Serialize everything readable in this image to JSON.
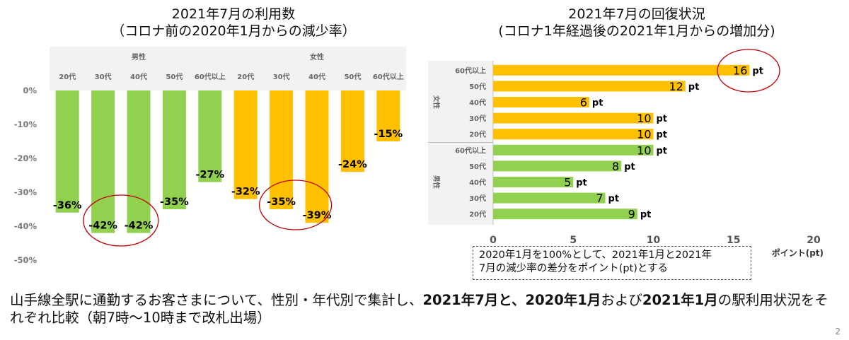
{
  "chart_data": [
    {
      "type": "bar",
      "title": "2021年7月の利用数",
      "subtitle": "（コロナ前の2020年1月からの減少率）",
      "groups": [
        {
          "name": "男性",
          "color": "#92d050",
          "categories": [
            "20代",
            "30代",
            "40代",
            "50代",
            "60代以上"
          ],
          "values": [
            -36,
            -42,
            -42,
            -35,
            -27
          ],
          "labels": [
            "-36%",
            "-42%",
            "-42%",
            "-35%",
            "-27%"
          ]
        },
        {
          "name": "女性",
          "color": "#ffc000",
          "categories": [
            "20代",
            "30代",
            "40代",
            "50代",
            "60代以上"
          ],
          "values": [
            -32,
            -35,
            -39,
            -24,
            -15
          ],
          "labels": [
            "-32%",
            "-35%",
            "-39%",
            "-24%",
            "-15%"
          ]
        }
      ],
      "ylim": [
        -50,
        0
      ],
      "yticks": [
        "0%",
        "-10%",
        "-20%",
        "-30%",
        "-40%",
        "-50%"
      ],
      "grid": false
    },
    {
      "type": "bar",
      "orientation": "horizontal",
      "title": "2021年7月の回復状況",
      "subtitle": "(コロナ1年経過後の2021年1月からの増加分)",
      "groups": [
        {
          "name": "女性",
          "color": "#ffc000",
          "categories": [
            "60代以上",
            "50代",
            "40代",
            "30代",
            "20代"
          ],
          "values": [
            16,
            12,
            6,
            10,
            10
          ]
        },
        {
          "name": "男性",
          "color": "#92d050",
          "categories": [
            "60代以上",
            "50代",
            "40代",
            "30代",
            "20代"
          ],
          "values": [
            10,
            8,
            5,
            7,
            9
          ]
        }
      ],
      "unit_label": "pt",
      "xlim": [
        0,
        20
      ],
      "xticks": [
        "0",
        "5",
        "10",
        "15",
        "20"
      ],
      "xlabel": "ポイント(pt)",
      "grid": false
    }
  ],
  "note": {
    "line1": "2020年1月を100%として、2021年1月と2021年",
    "line2": "7月の減少率の差分をポイント(pt)とする"
  },
  "footer": {
    "part1": "山手線全駅に通勤するお客さまについて、性別・年代別で集計し、",
    "bold1": "2021年7月と、2020年1月",
    "part2": "および",
    "bold2": "2021年1月",
    "part3": "の駅利用状況をそれぞれ比較（朝7時～10時まで改札出場）"
  },
  "page_number": "2",
  "colors": {
    "male": "#92d050",
    "female": "#ffc000",
    "highlight": "#c00000"
  }
}
